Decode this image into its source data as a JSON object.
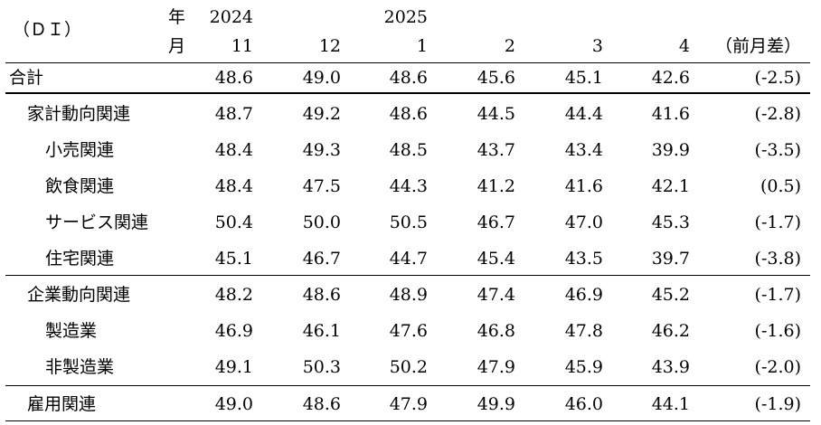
{
  "header": {
    "di_label": "（ＤＩ）",
    "year_label": "年",
    "month_label": "月",
    "years": [
      "2024",
      "",
      "2025",
      "",
      "",
      ""
    ],
    "months": [
      "11",
      "12",
      "1",
      "2",
      "3",
      "4"
    ],
    "diff_label": "（前月差）"
  },
  "rows": [
    {
      "label": "合計",
      "values": [
        "48.6",
        "49.0",
        "48.6",
        "45.6",
        "45.1",
        "42.6"
      ],
      "diff": "(-2.5)"
    },
    {
      "label": "家計動向関連",
      "values": [
        "48.7",
        "49.2",
        "48.6",
        "44.5",
        "44.4",
        "41.6"
      ],
      "diff": "(-2.8)"
    },
    {
      "label": "小売関連",
      "values": [
        "48.4",
        "49.3",
        "48.5",
        "43.7",
        "43.4",
        "39.9"
      ],
      "diff": "(-3.5)"
    },
    {
      "label": "飲食関連",
      "values": [
        "48.4",
        "47.5",
        "44.3",
        "41.2",
        "41.6",
        "42.1"
      ],
      "diff": "(0.5)"
    },
    {
      "label": "サービス関連",
      "values": [
        "50.4",
        "50.0",
        "50.5",
        "46.7",
        "47.0",
        "45.3"
      ],
      "diff": "(-1.7)"
    },
    {
      "label": "住宅関連",
      "values": [
        "45.1",
        "46.7",
        "44.7",
        "45.4",
        "43.5",
        "39.7"
      ],
      "diff": "(-3.8)"
    },
    {
      "label": "企業動向関連",
      "values": [
        "48.2",
        "48.6",
        "48.9",
        "47.4",
        "46.9",
        "45.2"
      ],
      "diff": "(-1.7)"
    },
    {
      "label": "製造業",
      "values": [
        "46.9",
        "46.1",
        "47.6",
        "46.8",
        "47.8",
        "46.2"
      ],
      "diff": "(-1.6)"
    },
    {
      "label": "非製造業",
      "values": [
        "49.1",
        "50.3",
        "50.2",
        "47.9",
        "45.9",
        "43.9"
      ],
      "diff": "(-2.0)"
    },
    {
      "label": "雇用関連",
      "values": [
        "49.0",
        "48.6",
        "47.9",
        "49.9",
        "46.0",
        "44.1"
      ],
      "diff": "(-1.9)"
    }
  ]
}
